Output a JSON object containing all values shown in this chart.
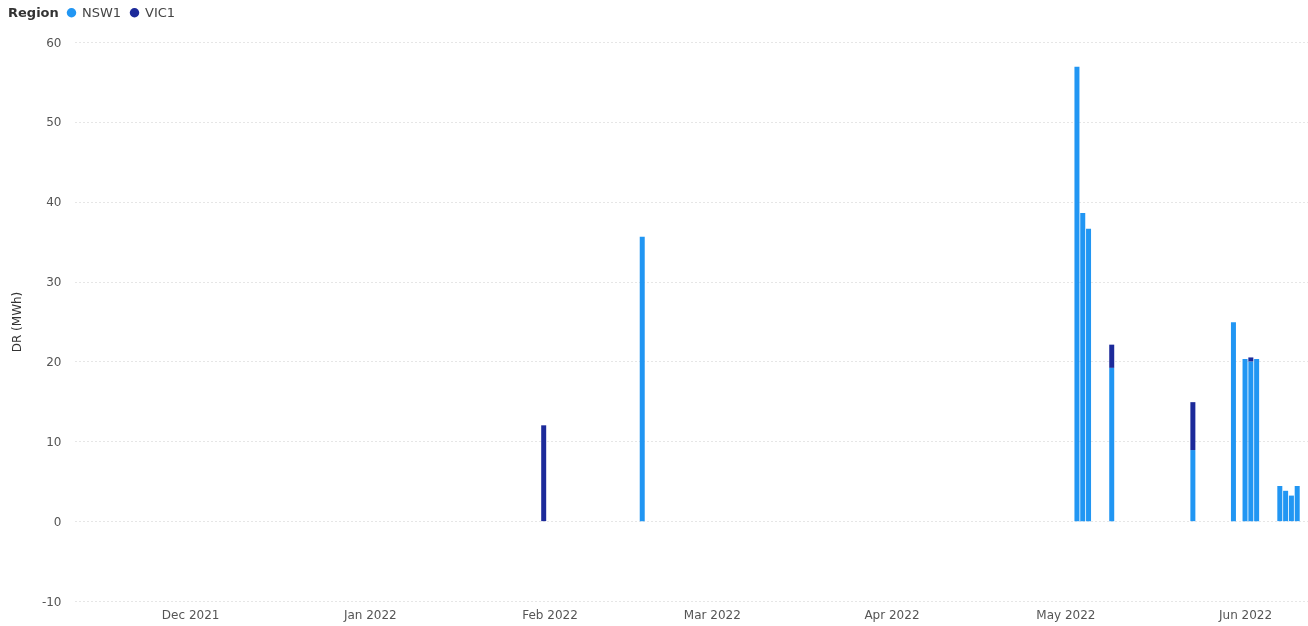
{
  "chart_data": {
    "type": "bar",
    "stacked": true,
    "ylabel": "DR (MWh)",
    "legend_title": "Region",
    "legend": "top left",
    "grid": "y",
    "x": [
      "2022-01-31",
      "2022-02-17",
      "2022-05-03",
      "2022-05-04",
      "2022-05-05",
      "2022-05-09",
      "2022-05-23",
      "2022-05-30",
      "2022-06-01",
      "2022-06-02",
      "2022-06-03",
      "2022-06-07",
      "2022-06-08",
      "2022-06-09",
      "2022-06-10"
    ],
    "series": [
      {
        "name": "NSW1",
        "color": "#2196f3",
        "values": [
          null,
          35.6,
          56.9,
          38.6,
          36.6,
          19.2,
          8.9,
          24.9,
          20.3,
          20.0,
          20.3,
          4.4,
          3.8,
          3.2,
          4.4
        ]
      },
      {
        "name": "VIC1",
        "color": "#1c2a9a",
        "values": [
          12.0,
          null,
          null,
          null,
          null,
          2.9,
          6.0,
          null,
          null,
          0.5,
          null,
          null,
          null,
          null,
          null
        ]
      }
    ],
    "xlim": [
      "2021-11-12",
      "2022-06-11"
    ],
    "xticks": [
      {
        "value": "2021-12-01",
        "label": "Dec 2021"
      },
      {
        "value": "2022-01-01",
        "label": "Jan 2022"
      },
      {
        "value": "2022-02-01",
        "label": "Feb 2022"
      },
      {
        "value": "2022-03-01",
        "label": "Mar 2022"
      },
      {
        "value": "2022-04-01",
        "label": "Apr 2022"
      },
      {
        "value": "2022-05-01",
        "label": "May 2022"
      },
      {
        "value": "2022-06-01",
        "label": "Jun 2022"
      }
    ],
    "ylim": [
      -10,
      60
    ],
    "yticks": [
      -10,
      0,
      10,
      20,
      30,
      40,
      50,
      60
    ]
  }
}
